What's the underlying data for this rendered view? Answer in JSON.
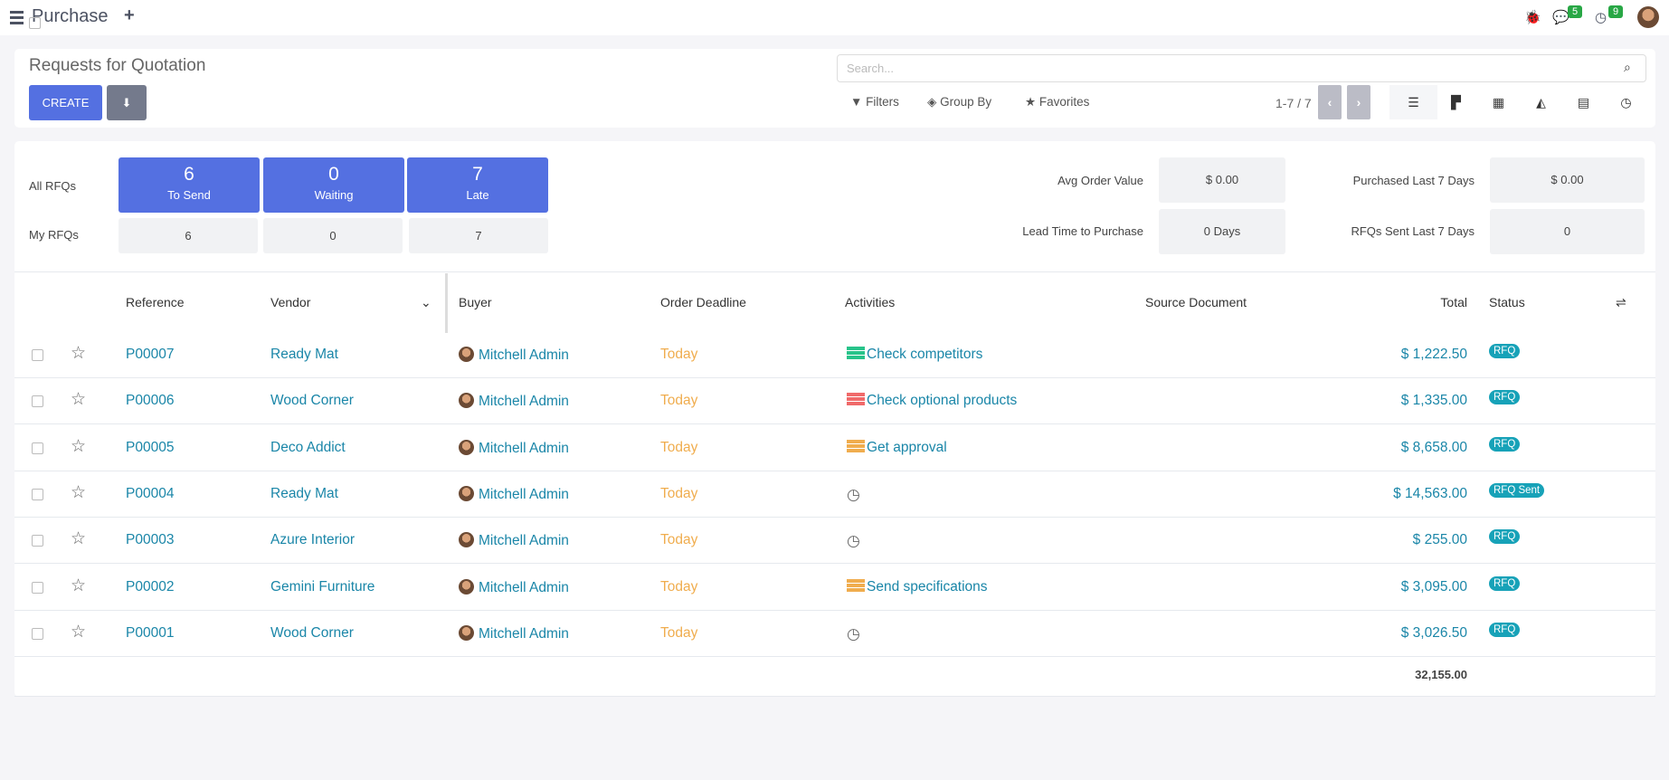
{
  "app": {
    "title": "Purchase",
    "bug_badge": "",
    "messages_count": "5",
    "activities_count": "9"
  },
  "control": {
    "title": "Requests for Quotation",
    "create_label": "CREATE",
    "search_placeholder": "Search...",
    "filters": "Filters",
    "group_by": "Group By",
    "favorites": "Favorites",
    "pager": "1-7 / 7"
  },
  "stats": {
    "all_rfqs": "All RFQs",
    "my_rfqs": "My RFQs",
    "tiles": [
      {
        "n": "6",
        "t": "To Send"
      },
      {
        "n": "0",
        "t": "Waiting"
      },
      {
        "n": "7",
        "t": "Late"
      }
    ],
    "my": [
      "6",
      "0",
      "7"
    ],
    "avg_order_label": "Avg Order Value",
    "avg_order": "$ 0.00",
    "lead_label": "Lead Time to Purchase",
    "lead": "0 Days",
    "purchased_label": "Purchased Last 7 Days",
    "purchased": "$ 0.00",
    "sent_label": "RFQs Sent Last 7 Days",
    "sent": "0"
  },
  "table": {
    "headers": {
      "reference": "Reference",
      "vendor": "Vendor",
      "buyer": "Buyer",
      "deadline": "Order Deadline",
      "activities": "Activities",
      "source": "Source Document",
      "total": "Total",
      "status": "Status"
    },
    "rows": [
      {
        "ref": "P00007",
        "vendor": "Ready Mat",
        "buyer": "Mitchell Admin",
        "deadline": "Today",
        "activity": "Check competitors",
        "activity_color": "#28c38a",
        "total": "$ 1,222.50",
        "status": "RFQ"
      },
      {
        "ref": "P00006",
        "vendor": "Wood Corner",
        "buyer": "Mitchell Admin",
        "deadline": "Today",
        "activity": "Check optional products",
        "activity_color": "#f06a6a",
        "total": "$ 1,335.00",
        "status": "RFQ"
      },
      {
        "ref": "P00005",
        "vendor": "Deco Addict",
        "buyer": "Mitchell Admin",
        "deadline": "Today",
        "activity": "Get approval",
        "activity_color": "#f0ad4e",
        "total": "$ 8,658.00",
        "status": "RFQ"
      },
      {
        "ref": "P00004",
        "vendor": "Ready Mat",
        "buyer": "Mitchell Admin",
        "deadline": "Today",
        "activity": "",
        "activity_color": "",
        "total": "$ 14,563.00",
        "status": "RFQ Sent"
      },
      {
        "ref": "P00003",
        "vendor": "Azure Interior",
        "buyer": "Mitchell Admin",
        "deadline": "Today",
        "activity": "",
        "activity_color": "",
        "total": "$ 255.00",
        "status": "RFQ"
      },
      {
        "ref": "P00002",
        "vendor": "Gemini Furniture",
        "buyer": "Mitchell Admin",
        "deadline": "Today",
        "activity": "Send specifications",
        "activity_color": "#f0ad4e",
        "total": "$ 3,095.00",
        "status": "RFQ"
      },
      {
        "ref": "P00001",
        "vendor": "Wood Corner",
        "buyer": "Mitchell Admin",
        "deadline": "Today",
        "activity": "",
        "activity_color": "",
        "total": "$ 3,026.50",
        "status": "RFQ"
      }
    ],
    "sum_total": "32,155.00"
  }
}
